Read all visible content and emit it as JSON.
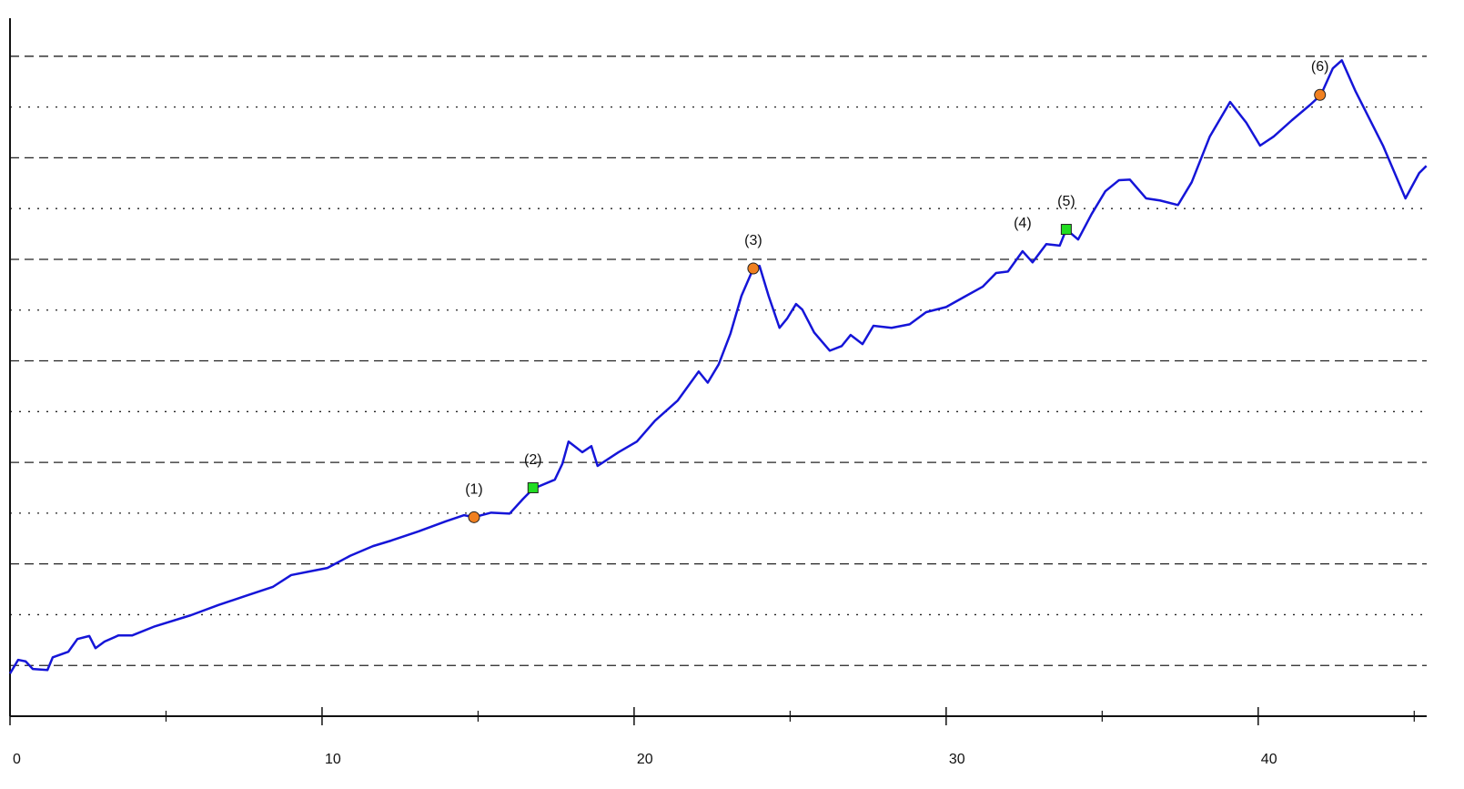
{
  "chart_data": {
    "type": "line",
    "xlim": [
      0,
      45.4
    ],
    "ylim": [
      0,
      13.75
    ],
    "xticks": [
      0,
      10,
      20,
      30,
      40
    ],
    "xticks_minor": [
      5,
      15,
      25,
      35,
      45
    ],
    "ygrid_dashed": [
      1,
      3,
      5,
      7,
      9,
      11,
      13
    ],
    "ygrid_dotted": [
      2,
      4,
      6,
      8,
      10,
      12
    ],
    "series": [
      {
        "color": "#1515d8",
        "x": [
          0,
          0.26,
          0.5,
          0.73,
          1.2,
          1.37,
          1.87,
          2.16,
          2.54,
          2.74,
          3.03,
          3.47,
          3.91,
          4.64,
          5.8,
          6.68,
          7.55,
          8.43,
          9.01,
          9.59,
          10.17,
          10.9,
          11.63,
          12.22,
          13.09,
          13.97,
          14.55,
          14.87,
          15.42,
          16.01,
          16.44,
          16.76,
          17.46,
          17.7,
          17.9,
          18.34,
          18.63,
          18.83,
          19.5,
          20.09,
          20.67,
          21.4,
          22.07,
          22.36,
          22.71,
          23.09,
          23.44,
          23.82,
          24.02,
          24.31,
          24.66,
          24.9,
          25.19,
          25.39,
          25.77,
          26.27,
          26.65,
          26.94,
          27.32,
          27.67,
          28.25,
          28.83,
          29.36,
          30.0,
          30.58,
          31.17,
          31.6,
          31.98,
          32.45,
          32.77,
          33.21,
          33.64,
          33.85,
          34.23,
          34.66,
          35.1,
          35.54,
          35.89,
          36.41,
          36.85,
          37.43,
          37.87,
          38.45,
          39.1,
          39.62,
          40.06,
          40.5,
          41.08,
          41.66,
          42.01,
          42.39,
          42.68,
          43.12,
          44.0,
          44.72,
          45.16,
          45.39
        ],
        "values": [
          0.84,
          1.11,
          1.08,
          0.93,
          0.91,
          1.16,
          1.27,
          1.52,
          1.58,
          1.34,
          1.47,
          1.59,
          1.59,
          1.77,
          1.99,
          2.19,
          2.37,
          2.55,
          2.78,
          2.85,
          2.92,
          3.16,
          3.35,
          3.46,
          3.64,
          3.84,
          3.96,
          3.92,
          4.01,
          3.99,
          4.28,
          4.48,
          4.66,
          4.97,
          5.41,
          5.2,
          5.32,
          4.93,
          5.2,
          5.41,
          5.82,
          6.22,
          6.79,
          6.57,
          6.93,
          7.54,
          8.28,
          8.82,
          8.87,
          8.28,
          7.65,
          7.83,
          8.12,
          8.01,
          7.56,
          7.2,
          7.29,
          7.51,
          7.33,
          7.69,
          7.65,
          7.72,
          7.96,
          8.06,
          8.26,
          8.46,
          8.73,
          8.76,
          9.16,
          8.94,
          9.3,
          9.27,
          9.59,
          9.39,
          9.89,
          10.34,
          10.56,
          10.57,
          10.2,
          10.16,
          10.07,
          10.52,
          11.42,
          12.1,
          11.69,
          11.24,
          11.42,
          11.74,
          12.04,
          12.24,
          12.76,
          12.92,
          12.31,
          11.24,
          10.2,
          10.7,
          10.84
        ]
      }
    ],
    "annotations": [
      {
        "label": "(1)",
        "x": 14.87,
        "y": 3.92,
        "shape": "circle",
        "color": "#f08020"
      },
      {
        "label": "(2)",
        "x": 16.76,
        "y": 4.5,
        "shape": "square",
        "color": "#22dd22"
      },
      {
        "label": "(3)",
        "x": 23.82,
        "y": 8.82,
        "shape": "circle",
        "color": "#f08020"
      },
      {
        "label": "(4)",
        "x": 32.45,
        "y": 9.16,
        "shape": "none",
        "color": "#1515d8"
      },
      {
        "label": "(5)",
        "x": 33.85,
        "y": 9.59,
        "shape": "square",
        "color": "#22dd22"
      },
      {
        "label": "(6)",
        "x": 41.98,
        "y": 12.24,
        "shape": "circle",
        "color": "#f08020"
      }
    ]
  }
}
